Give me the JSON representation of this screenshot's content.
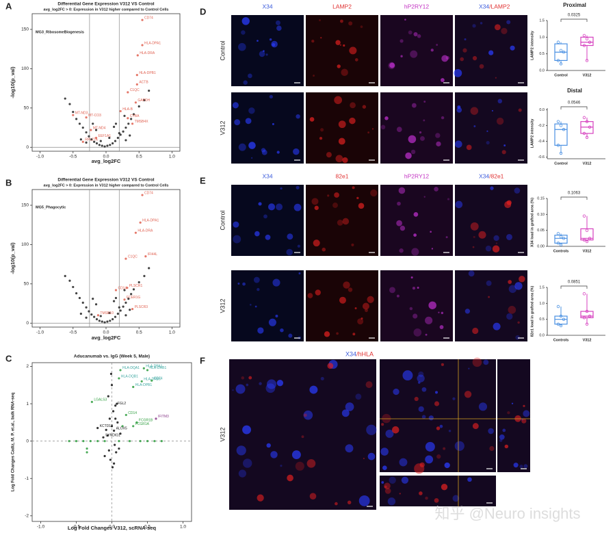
{
  "panel_labels": [
    "A",
    "B",
    "C",
    "D",
    "E",
    "F"
  ],
  "chart_data": [
    {
      "type": "scatter",
      "title": "Differential Gene Expression V312 VS Control",
      "subtitle": "avg_log2FC > 0: Expression in V312 higher compared to Control Cells",
      "annotation": "MG3_RibosomeBiogenesis",
      "x_label": "avg_log2FC",
      "y_label": "-log10(p_val)",
      "xlim": [
        -1.12,
        1.12
      ],
      "ylim": [
        -5,
        170
      ],
      "xticks": [
        {
          "value": -1,
          "label": "-1.0"
        },
        -0.5,
        {
          "value": 0,
          "label": "0.0"
        },
        0.5,
        {
          "value": 1,
          "label": "1.0"
        }
      ],
      "yticks": [
        0,
        50,
        100,
        150
      ],
      "reference_lines": {
        "x": [
          -0.25,
          0.2
        ],
        "y": [
          0
        ],
        "style": "solid"
      },
      "series": [
        {
          "color": "#222222",
          "label_color": "#222222",
          "x": [
            -0.62,
            -0.55,
            -0.5,
            -0.45,
            -0.4,
            -0.35,
            -0.3,
            -0.26,
            -0.22,
            -0.18,
            -0.14,
            -0.1,
            -0.06,
            -0.02,
            0.02,
            0.06,
            0.1,
            0.14,
            0.18,
            0.22,
            0.26,
            0.3,
            0.34,
            0.38,
            0.42,
            0.5,
            0.58,
            0.65,
            -0.3,
            0.3,
            -0.15,
            0.12,
            -0.2,
            0.28,
            0.05,
            -0.08,
            0.2,
            0.15,
            0.36,
            -0.38
          ],
          "values": [
            62,
            55,
            45,
            36,
            30,
            25,
            19,
            14,
            10,
            7,
            5,
            3,
            2,
            1,
            2,
            3,
            5,
            8,
            12,
            16,
            20,
            25,
            30,
            36,
            42,
            52,
            60,
            72,
            6,
            9,
            22,
            26,
            30,
            40,
            12,
            8,
            18,
            30,
            15,
            10
          ],
          "point_labels": [
            null,
            null,
            null,
            null,
            null,
            null,
            null,
            null,
            null,
            null,
            null,
            null,
            null,
            null,
            null,
            null,
            null,
            null,
            null,
            null,
            null,
            null,
            null,
            null,
            null,
            null,
            null,
            null,
            null,
            null,
            null,
            null,
            null,
            null,
            null,
            null,
            null,
            null,
            null,
            null
          ]
        },
        {
          "color": "#e06050",
          "label_color": "#e06050",
          "x": [
            0.55,
            0.55,
            0.48,
            0.47,
            0.47,
            0.33,
            0.45,
            0.22,
            0.33,
            0.4,
            -0.5,
            -0.3,
            -0.23,
            -0.35,
            -0.15
          ],
          "values": [
            162,
            130,
            117,
            92,
            80,
            70,
            57,
            46,
            37,
            30,
            41,
            38,
            22,
            7,
            12
          ],
          "point_labels": [
            "CD74",
            "HLA-DPA1",
            "HLA-DRA",
            "HLA-DPB1",
            "ACTB",
            "C1QC",
            "GAPDH",
            "HLA-B",
            "CYBA",
            "TMSB4X",
            "MT-ND3",
            "MT-CO3",
            "MT-ND4",
            "RPL27A",
            "EEF1A1"
          ]
        }
      ]
    },
    {
      "type": "scatter",
      "title": "Differential Gene Expression V312 VS Control",
      "subtitle": "avg_log2FC > 0: Expression in V312 higher compared to Control Cells",
      "annotation": "MG5_Phagocytic",
      "x_label": "avg_log2FC",
      "y_label": "-log10(p_val)",
      "xlim": [
        -1.12,
        1.12
      ],
      "ylim": [
        -5,
        170
      ],
      "xticks": [
        {
          "value": -1,
          "label": "-1.0"
        },
        -0.5,
        {
          "value": 0,
          "label": "0.0"
        },
        0.5,
        {
          "value": 1,
          "label": "1.0"
        }
      ],
      "yticks": [
        0,
        50,
        100,
        150
      ],
      "reference_lines": {
        "x": [
          -0.25,
          0.2
        ],
        "y": [
          0
        ],
        "style": "solid"
      },
      "series": [
        {
          "color": "#222222",
          "label_color": "#222222",
          "x": [
            -0.62,
            -0.55,
            -0.5,
            -0.45,
            -0.4,
            -0.35,
            -0.3,
            -0.26,
            -0.22,
            -0.18,
            -0.14,
            -0.1,
            -0.06,
            -0.02,
            0.02,
            0.06,
            0.1,
            0.14,
            0.18,
            0.22,
            0.26,
            0.3,
            0.34,
            0.38,
            0.42,
            0.5,
            0.58,
            0.65,
            -0.3,
            0.3,
            -0.15,
            0.12,
            -0.2,
            0.28,
            0.05,
            -0.08,
            0.2,
            0.15,
            0.36,
            -0.38
          ],
          "values": [
            60,
            54,
            46,
            38,
            32,
            26,
            20,
            15,
            11,
            8,
            5,
            3,
            2,
            1,
            2,
            3,
            5,
            8,
            12,
            16,
            21,
            26,
            31,
            37,
            43,
            52,
            60,
            70,
            7,
            10,
            24,
            28,
            31,
            42,
            13,
            9,
            20,
            32,
            17,
            12
          ],
          "point_labels": [
            null,
            null,
            null,
            null,
            null,
            null,
            null,
            null,
            null,
            null,
            null,
            null,
            null,
            null,
            null,
            null,
            null,
            null,
            null,
            null,
            null,
            null,
            null,
            null,
            null,
            null,
            null,
            null,
            null,
            null,
            null,
            null,
            null,
            null,
            null,
            null,
            null,
            null,
            null,
            null
          ]
        },
        {
          "color": "#e06050",
          "label_color": "#e06050",
          "x": [
            0.55,
            0.52,
            0.45,
            0.3,
            0.6,
            0.15,
            0.32,
            0.4,
            0.28,
            -0.12
          ],
          "values": [
            163,
            128,
            115,
            82,
            85,
            42,
            45,
            18,
            30,
            10
          ],
          "point_labels": [
            "CD74",
            "HLA-DPA1",
            "HLA-DRA",
            "C1QC",
            "IFI44L",
            "CD14",
            "PLSCR1",
            "PLSCR3",
            "FCER1G",
            "TMSB10"
          ]
        }
      ]
    },
    {
      "type": "scatter",
      "title": "Aducanumab vs. IgG (Week 5, Male)",
      "x_label": "Log Fold Changes V312, scRNA-seq",
      "y_label": "Log Fold Changes Cadiz, M. P. et.al., bulk RNA-seq",
      "xlim": [
        -1.12,
        1.12
      ],
      "ylim": [
        -2.15,
        2.1
      ],
      "xticks": [
        {
          "value": -1,
          "label": "-1.0"
        },
        -0.5,
        {
          "value": 0,
          "label": "0.0"
        },
        0.5,
        {
          "value": 1,
          "label": "1.0"
        }
      ],
      "yticks": [
        -2,
        -1,
        0,
        1,
        2
      ],
      "reference_lines": {
        "x": [
          0
        ],
        "y": [
          0
        ],
        "style": "dashed"
      },
      "series": [
        {
          "color": "#2e9e3e",
          "label_color": "#3aa6a0",
          "x": [
            0.12,
            0.45,
            0.5,
            0.42,
            0.56,
            0.1,
            0.3
          ],
          "values": [
            1.9,
            1.95,
            1.9,
            1.6,
            1.62,
            1.68,
            1.45
          ],
          "point_labels": [
            "HLA-DQA1",
            "HLA-DPA1",
            "HLA-DRB1",
            "HLA-DRB5",
            "CD74",
            "HLA-DQB1",
            "HLA-DPB1"
          ]
        },
        {
          "color": "#2e9e3e",
          "label_color": "#2e9e3e",
          "x": [
            -0.28,
            0.2,
            0.35,
            0.3,
            -0.6,
            -0.5,
            -0.4,
            -0.35,
            -0.3,
            -0.2,
            -0.1,
            0.1,
            0.25,
            0.4,
            0.5,
            0.6,
            0.7,
            -0.35,
            0.15
          ],
          "values": [
            1.05,
            0.7,
            0.5,
            0.4,
            0,
            0,
            0,
            -0.2,
            0,
            0,
            0,
            0,
            0,
            0,
            0,
            0,
            0,
            -0.3,
            0.4
          ],
          "point_labels": [
            "LGALS3",
            "CD14",
            "FCGR1B",
            "FCGR1A",
            null,
            null,
            null,
            null,
            null,
            null,
            null,
            null,
            null,
            null,
            null,
            null,
            null,
            null,
            null
          ]
        },
        {
          "color": "#111111",
          "label_color": "#111111",
          "x": [
            0.05,
            -0.2,
            -0.12,
            0.03,
            -0.05,
            0.0,
            0.02,
            -0.03,
            0.08,
            -0.08,
            0.04,
            0.06,
            -0.02,
            0.1,
            -0.1,
            0.01,
            0.12,
            -0.06,
            0.07,
            0.0,
            -0.04,
            0.05,
            0.03,
            -0.01
          ],
          "values": [
            0.95,
            0.35,
            0.1,
            0.28,
            1.2,
            1.5,
            0.8,
            0.6,
            0.5,
            0.3,
            -0.1,
            -0.3,
            -0.5,
            -0.2,
            -0.4,
            -0.7,
            0.2,
            0.15,
            1.0,
            0.4,
            -0.25,
            0.6,
            -0.6,
            1.8
          ],
          "point_labels": [
            "FGL2",
            "KCTD12",
            "SYNDIG1",
            "ALOX5",
            null,
            null,
            null,
            null,
            null,
            null,
            null,
            null,
            null,
            null,
            null,
            null,
            null,
            null,
            null,
            null,
            null,
            null,
            null,
            null
          ]
        },
        {
          "color": "#8a3c8a",
          "label_color": "#8a3c8a",
          "x": [
            0.62
          ],
          "values": [
            0.6
          ],
          "point_labels": [
            "IFITM3"
          ]
        }
      ]
    },
    {
      "type": "box",
      "title": "Proximal",
      "y_label": "LAMP2 intensity",
      "categories": [
        "Control",
        "V312"
      ],
      "colors": [
        "#4a90e2",
        "#d63fbf"
      ],
      "ylim": [
        0,
        1.5
      ],
      "yticks": [
        {
          "value": 0,
          "label": "0.0"
        },
        0.5,
        {
          "value": 1,
          "label": "1.0"
        },
        1.5
      ],
      "boxes": [
        {
          "min": 0.2,
          "q1": 0.3,
          "median": 0.55,
          "q3": 0.8,
          "max": 0.85
        },
        {
          "min": 0.3,
          "q1": 0.75,
          "median": 0.85,
          "q3": 1.0,
          "max": 1.05
        }
      ],
      "points": [
        [
          0.85,
          0.6,
          0.55,
          0.3,
          0.2
        ],
        [
          1.05,
          0.95,
          0.85,
          0.75,
          0.3
        ]
      ],
      "p_value": 0.0325
    },
    {
      "type": "box",
      "title": "Distal",
      "y_label": "LAMP2 intensity",
      "categories": [
        "Control",
        "V312"
      ],
      "colors": [
        "#4a90e2",
        "#d63fbf"
      ],
      "ylim": [
        -0.62,
        0.02
      ],
      "yticks": [
        {
          "value": 0,
          "label": "0.0"
        },
        -0.2,
        -0.4,
        -0.6
      ],
      "boxes": [
        {
          "min": -0.55,
          "q1": -0.45,
          "median": -0.25,
          "q3": -0.18,
          "max": -0.15
        },
        {
          "min": -0.35,
          "q1": -0.3,
          "median": -0.22,
          "q3": -0.15,
          "max": -0.1
        }
      ],
      "points": [
        [
          -0.15,
          -0.2,
          -0.25,
          -0.45,
          -0.55
        ],
        [
          -0.1,
          -0.15,
          -0.22,
          -0.3,
          -0.35
        ]
      ],
      "p_value": 0.0546
    },
    {
      "type": "box",
      "y_label": "X34 load in grafted area (%)",
      "categories": [
        "Controls",
        "V312"
      ],
      "colors": [
        "#4a90e2",
        "#d63fbf"
      ],
      "ylim": [
        0,
        0.15
      ],
      "yticks": [
        {
          "value": 0,
          "label": "0.00"
        },
        {
          "value": 0.05,
          "label": "0.05"
        },
        {
          "value": 0.1,
          "label": "0.10"
        },
        {
          "value": 0.15,
          "label": "0.15"
        }
      ],
      "boxes": [
        {
          "min": 0.005,
          "q1": 0.01,
          "median": 0.025,
          "q3": 0.035,
          "max": 0.04
        },
        {
          "min": 0.015,
          "q1": 0.02,
          "median": 0.025,
          "q3": 0.055,
          "max": 0.095
        }
      ],
      "points": [
        [
          0.04,
          0.03,
          0.025,
          0.01,
          0.005
        ],
        [
          0.095,
          0.05,
          0.025,
          0.02,
          0.015
        ]
      ],
      "p_value": 0.1063
    },
    {
      "type": "box",
      "y_label": "82e1 load in grafted area (%)",
      "categories": [
        "Controls",
        "V312"
      ],
      "colors": [
        "#4a90e2",
        "#d63fbf"
      ],
      "ylim": [
        0,
        1.5
      ],
      "yticks": [
        {
          "value": 0,
          "label": "0.0"
        },
        0.5,
        {
          "value": 1,
          "label": "1.0"
        },
        1.5
      ],
      "boxes": [
        {
          "min": 0.3,
          "q1": 0.35,
          "median": 0.5,
          "q3": 0.6,
          "max": 0.9
        },
        {
          "min": 0.35,
          "q1": 0.55,
          "median": 0.6,
          "q3": 0.75,
          "max": 1.3
        }
      ],
      "points": [
        [
          0.9,
          0.6,
          0.5,
          0.35,
          0.3
        ],
        [
          1.3,
          0.75,
          0.6,
          0.55,
          0.35
        ]
      ],
      "p_value": 0.0851
    }
  ],
  "images": {
    "D": {
      "channels": [
        [
          "X34"
        ],
        [
          "LAMP2"
        ],
        [
          "hP2RY12"
        ],
        [
          "X34",
          "/LAMP2"
        ]
      ],
      "rows": [
        "Control",
        "V312"
      ]
    },
    "E": {
      "channels": [
        [
          "X34"
        ],
        [
          "82e1"
        ],
        [
          "hP2RY12"
        ],
        [
          "X34",
          "/82e1"
        ]
      ],
      "rows": [
        "Control",
        "V312"
      ]
    },
    "F": {
      "channel": [
        "X34",
        "/hHLA"
      ],
      "row": "V312"
    }
  },
  "watermark": "知乎 @Neuro insights"
}
